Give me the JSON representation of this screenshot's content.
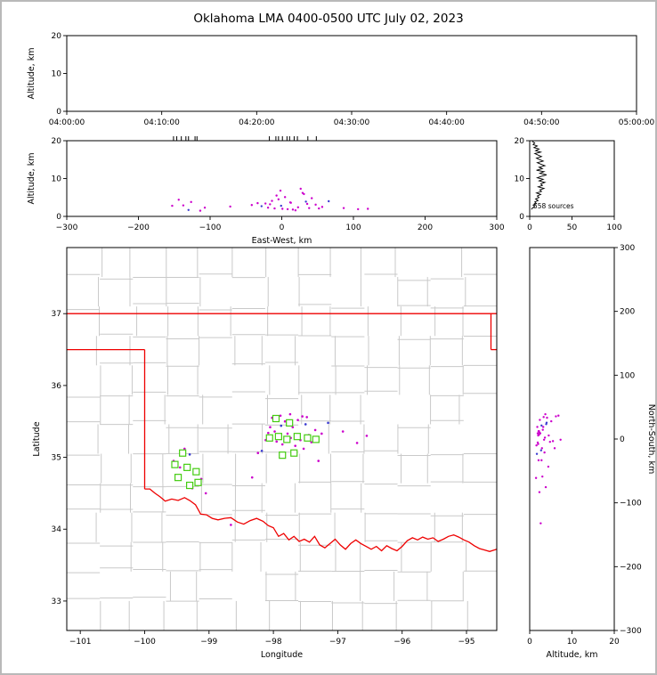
{
  "title": "Oklahoma LMA 0400-0500 UTC July 02, 2023",
  "colors": {
    "axis": "#000000",
    "county": "#c9c9c9",
    "state_border": "#ee0000",
    "source": "#cc00cc",
    "source_alt": "#3b3bd1",
    "station_edge": "#44cc11",
    "station_fill": "#ffffff",
    "histogram": "#000000",
    "station_tick": "#000000",
    "frame": "#b9b9b9"
  },
  "network": {
    "center_lon": -97.87,
    "center_lat": 35.25,
    "km_per_deg_lon": 91,
    "km_per_deg_lat": 111
  },
  "chart_data": [
    {
      "id": "time_height",
      "type": "scatter",
      "xlabel": "",
      "ylabel": "Altitude, km",
      "xlim": [
        0,
        3600
      ],
      "xticks": [
        0,
        600,
        1200,
        1800,
        2400,
        3000,
        3600
      ],
      "xtick_labels": [
        "04:00:00",
        "04:10:00",
        "04:20:00",
        "04:30:00",
        "04:40:00",
        "04:50:00",
        "05:00:00"
      ],
      "ylim": [
        0,
        20
      ],
      "yticks": [
        0,
        10,
        20
      ],
      "ytick_labels": [
        "0",
        "10",
        "20"
      ],
      "points": []
    },
    {
      "id": "ew_height",
      "type": "scatter",
      "xlabel": "East-West, km",
      "ylabel": "Altitude, km",
      "xlim": [
        -300,
        300
      ],
      "xticks": [
        -300,
        -200,
        -100,
        0,
        100,
        200,
        300
      ],
      "xtick_labels": [
        "−300",
        "−200",
        "−100",
        "0",
        "100",
        "200",
        "300"
      ],
      "ylim": [
        0,
        20
      ],
      "yticks": [
        0,
        10,
        20
      ],
      "ytick_labels": [
        "0",
        "10",
        "20"
      ],
      "points_from": "sources",
      "station_ticks_from": "stations"
    },
    {
      "id": "alt_histogram",
      "type": "line",
      "xlabel": "",
      "ylabel": "",
      "xlim": [
        0,
        100
      ],
      "xticks": [
        0,
        50,
        100
      ],
      "xtick_labels": [
        "0",
        "50",
        "100"
      ],
      "ylim": [
        0,
        20
      ],
      "yticks": [
        0,
        10,
        20
      ],
      "ytick_labels": [
        "0",
        "10",
        "20"
      ],
      "annotation": "558 sources",
      "profile": [
        [
          3,
          19.8
        ],
        [
          6,
          19.4
        ],
        [
          4,
          19.0
        ],
        [
          9,
          18.6
        ],
        [
          5,
          18.2
        ],
        [
          11,
          17.8
        ],
        [
          7,
          17.4
        ],
        [
          13,
          17.0
        ],
        [
          6,
          16.6
        ],
        [
          10,
          16.2
        ],
        [
          14,
          15.8
        ],
        [
          8,
          15.4
        ],
        [
          12,
          15.0
        ],
        [
          16,
          14.6
        ],
        [
          9,
          14.2
        ],
        [
          13,
          13.8
        ],
        [
          18,
          13.4
        ],
        [
          11,
          13.0
        ],
        [
          15,
          12.6
        ],
        [
          8,
          12.2
        ],
        [
          17,
          11.8
        ],
        [
          12,
          11.4
        ],
        [
          20,
          11.0
        ],
        [
          14,
          10.6
        ],
        [
          9,
          10.2
        ],
        [
          16,
          9.8
        ],
        [
          11,
          9.4
        ],
        [
          18,
          9.0
        ],
        [
          13,
          8.6
        ],
        [
          15,
          8.2
        ],
        [
          10,
          7.8
        ],
        [
          17,
          7.4
        ],
        [
          12,
          7.0
        ],
        [
          14,
          6.6
        ],
        [
          8,
          6.2
        ],
        [
          13,
          5.8
        ],
        [
          9,
          5.4
        ],
        [
          11,
          5.0
        ],
        [
          7,
          4.6
        ],
        [
          10,
          4.2
        ],
        [
          6,
          3.8
        ],
        [
          8,
          3.4
        ],
        [
          4,
          3.0
        ],
        [
          6,
          2.6
        ],
        [
          3,
          2.2
        ],
        [
          2,
          1.8
        ]
      ]
    },
    {
      "id": "plan_view",
      "type": "scatter",
      "xlabel": "Longitude",
      "ylabel": "Latitude",
      "xlim": [
        -101.21,
        -94.53
      ],
      "xticks": [
        -101,
        -100,
        -99,
        -98,
        -97,
        -96,
        -95
      ],
      "xtick_labels": [
        "−101",
        "−100",
        "−99",
        "−98",
        "−97",
        "−96",
        "−95"
      ],
      "ylim": [
        32.59,
        37.92
      ],
      "yticks": [
        33,
        34,
        35,
        36,
        37
      ],
      "ytick_labels": [
        "33",
        "34",
        "35",
        "36",
        "37"
      ],
      "points_from": "sources",
      "stations_from": "stations"
    },
    {
      "id": "ns_height",
      "type": "scatter",
      "xlabel": "Altitude, km",
      "ylabel": "North-South, km",
      "xlim": [
        0,
        20
      ],
      "xticks": [
        0,
        10,
        20
      ],
      "xtick_labels": [
        "0",
        "10",
        "20"
      ],
      "ylim": [
        -300,
        300
      ],
      "yticks": [
        300,
        200,
        100,
        0,
        -100,
        -200,
        -300
      ],
      "ytick_labels": [
        "300",
        "200",
        "100",
        "0",
        "−100",
        "−200",
        "−300"
      ],
      "points_from": "sources"
    }
  ],
  "sources": [
    [
      -98.05,
      35.42,
      3.2,
      0
    ],
    [
      -97.98,
      35.36,
      2.1,
      0
    ],
    [
      -97.92,
      35.3,
      4.5,
      0
    ],
    [
      -97.88,
      35.44,
      2.8,
      1
    ],
    [
      -97.82,
      35.5,
      5.1,
      0
    ],
    [
      -97.78,
      35.33,
      1.9,
      0
    ],
    [
      -97.73,
      35.27,
      3.6,
      0
    ],
    [
      -97.62,
      35.52,
      2.4,
      0
    ],
    [
      -97.55,
      35.57,
      6.2,
      0
    ],
    [
      -97.5,
      35.46,
      3.9,
      1
    ],
    [
      -97.45,
      35.31,
      2.2,
      0
    ],
    [
      -97.41,
      35.21,
      4.8,
      0
    ],
    [
      -97.66,
      35.16,
      1.6,
      0
    ],
    [
      -98.12,
      35.24,
      3.4,
      0
    ],
    [
      -98.18,
      35.09,
      2.7,
      1
    ],
    [
      -97.95,
      35.22,
      5.5,
      0
    ],
    [
      -97.86,
      35.18,
      2.0,
      0
    ],
    [
      -97.58,
      35.24,
      7.3,
      0
    ],
    [
      -97.35,
      35.38,
      3.1,
      0
    ],
    [
      -97.25,
      35.33,
      2.5,
      0
    ],
    [
      -98.02,
      35.55,
      4.1,
      0
    ],
    [
      -97.7,
      35.42,
      1.8,
      0
    ],
    [
      -97.48,
      35.56,
      3.3,
      0
    ],
    [
      -99.38,
      35.12,
      2.9,
      0
    ],
    [
      -99.3,
      35.04,
      1.7,
      1
    ],
    [
      -99.26,
      34.57,
      3.8,
      0
    ],
    [
      -99.05,
      34.5,
      2.3,
      0
    ],
    [
      -99.45,
      34.86,
      4.4,
      0
    ],
    [
      -99.12,
      34.7,
      1.5,
      0
    ],
    [
      -98.66,
      34.06,
      2.6,
      0
    ],
    [
      -98.33,
      34.72,
      3.0,
      0
    ],
    [
      -96.92,
      35.36,
      2.2,
      0
    ],
    [
      -96.7,
      35.2,
      1.9,
      0
    ],
    [
      -97.15,
      35.48,
      4.0,
      1
    ],
    [
      -99.55,
      34.95,
      2.8,
      0
    ],
    [
      -98.24,
      35.06,
      3.5,
      0
    ],
    [
      -97.3,
      34.95,
      2.1,
      0
    ],
    [
      -97.89,
      35.58,
      6.8,
      0
    ],
    [
      -97.74,
      35.6,
      3.7,
      0
    ],
    [
      -98.08,
      35.34,
      2.3,
      0
    ],
    [
      -97.53,
      35.12,
      5.9,
      0
    ],
    [
      -96.55,
      35.3,
      2.0,
      0
    ]
  ],
  "stations": [
    [
      -97.96,
      35.54
    ],
    [
      -97.75,
      35.48
    ],
    [
      -98.06,
      35.27
    ],
    [
      -97.92,
      35.29
    ],
    [
      -97.79,
      35.25
    ],
    [
      -97.63,
      35.29
    ],
    [
      -97.47,
      35.27
    ],
    [
      -97.34,
      35.25
    ],
    [
      -97.86,
      35.03
    ],
    [
      -97.68,
      35.06
    ],
    [
      -99.41,
      35.06
    ],
    [
      -99.53,
      34.9
    ],
    [
      -99.34,
      34.86
    ],
    [
      -99.2,
      34.8
    ],
    [
      -99.48,
      34.72
    ],
    [
      -99.3,
      34.61
    ],
    [
      -99.17,
      34.65
    ]
  ],
  "state_border": {
    "segments": [
      [
        [
          -101.21,
          37.0
        ],
        [
          -94.53,
          37.0
        ]
      ],
      [
        [
          -101.21,
          36.5
        ],
        [
          -100.0,
          36.5
        ]
      ],
      [
        [
          -100.0,
          36.5
        ],
        [
          -100.0,
          34.56
        ]
      ],
      [
        [
          -94.62,
          37.0
        ],
        [
          -94.62,
          36.5
        ]
      ],
      [
        [
          -94.62,
          36.5
        ],
        [
          -94.53,
          36.5
        ]
      ],
      [
        [
          -100.0,
          34.56
        ],
        [
          -99.92,
          34.56
        ],
        [
          -99.84,
          34.5
        ],
        [
          -99.76,
          34.45
        ],
        [
          -99.68,
          34.39
        ],
        [
          -99.58,
          34.42
        ],
        [
          -99.48,
          34.4
        ],
        [
          -99.38,
          34.44
        ],
        [
          -99.3,
          34.4
        ],
        [
          -99.21,
          34.34
        ],
        [
          -99.13,
          34.21
        ],
        [
          -99.04,
          34.2
        ],
        [
          -98.95,
          34.15
        ],
        [
          -98.86,
          34.13
        ],
        [
          -98.76,
          34.15
        ],
        [
          -98.66,
          34.16
        ],
        [
          -98.56,
          34.1
        ],
        [
          -98.46,
          34.07
        ],
        [
          -98.36,
          34.12
        ],
        [
          -98.26,
          34.15
        ],
        [
          -98.16,
          34.11
        ],
        [
          -98.08,
          34.05
        ],
        [
          -98.0,
          34.02
        ],
        [
          -97.92,
          33.9
        ],
        [
          -97.84,
          33.94
        ],
        [
          -97.76,
          33.85
        ],
        [
          -97.68,
          33.9
        ],
        [
          -97.6,
          33.83
        ],
        [
          -97.52,
          33.86
        ],
        [
          -97.44,
          33.82
        ],
        [
          -97.36,
          33.9
        ],
        [
          -97.28,
          33.78
        ],
        [
          -97.2,
          33.74
        ],
        [
          -97.12,
          33.8
        ],
        [
          -97.04,
          33.86
        ],
        [
          -96.96,
          33.78
        ],
        [
          -96.88,
          33.72
        ],
        [
          -96.8,
          33.8
        ],
        [
          -96.72,
          33.85
        ],
        [
          -96.64,
          33.8
        ],
        [
          -96.56,
          33.76
        ],
        [
          -96.48,
          33.72
        ],
        [
          -96.4,
          33.76
        ],
        [
          -96.32,
          33.7
        ],
        [
          -96.24,
          33.77
        ],
        [
          -96.16,
          33.73
        ],
        [
          -96.08,
          33.7
        ],
        [
          -96.0,
          33.76
        ],
        [
          -95.92,
          33.84
        ],
        [
          -95.84,
          33.88
        ],
        [
          -95.76,
          33.85
        ],
        [
          -95.68,
          33.89
        ],
        [
          -95.6,
          33.86
        ],
        [
          -95.52,
          33.88
        ],
        [
          -95.44,
          33.83
        ],
        [
          -95.36,
          33.86
        ],
        [
          -95.28,
          33.9
        ],
        [
          -95.2,
          33.92
        ],
        [
          -95.12,
          33.89
        ],
        [
          -95.04,
          33.85
        ],
        [
          -94.96,
          33.82
        ],
        [
          -94.88,
          33.77
        ],
        [
          -94.8,
          33.73
        ],
        [
          -94.72,
          33.71
        ],
        [
          -94.64,
          33.69
        ],
        [
          -94.53,
          33.72
        ]
      ]
    ]
  }
}
